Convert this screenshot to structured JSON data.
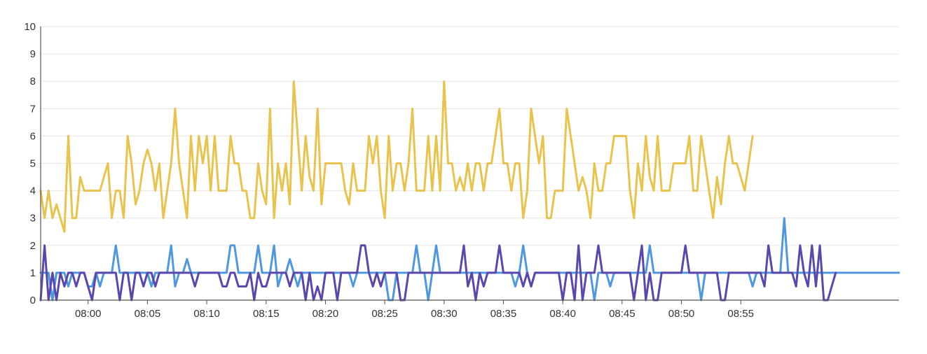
{
  "chart_data": {
    "type": "line",
    "x_start": "07:56:00",
    "x_step_seconds": 20,
    "ylim": [
      0,
      10
    ],
    "y_ticks": [
      "0",
      "1",
      "2",
      "3",
      "4",
      "5",
      "6",
      "7",
      "8",
      "9",
      "10"
    ],
    "x_ticks": [
      {
        "time": "08:00:00",
        "label": "08:00"
      },
      {
        "time": "08:05:00",
        "label": "08:05"
      },
      {
        "time": "08:10:00",
        "label": "08:10"
      },
      {
        "time": "08:15:00",
        "label": "08:15"
      },
      {
        "time": "08:20:00",
        "label": "08:20"
      },
      {
        "time": "08:25:00",
        "label": "08:25"
      },
      {
        "time": "08:30:00",
        "label": "08:30"
      },
      {
        "time": "08:35:00",
        "label": "08:35"
      },
      {
        "time": "08:40:00",
        "label": "08:40"
      },
      {
        "time": "08:45:00",
        "label": "08:45"
      },
      {
        "time": "08:50:00",
        "label": "08:50"
      },
      {
        "time": "08:55:00",
        "label": "08:55"
      }
    ],
    "grid": true,
    "series": [
      {
        "color": "#e8c44e",
        "values": [
          4,
          3,
          4,
          3,
          3.5,
          3,
          2.5,
          6,
          3,
          3,
          4.5,
          4,
          4,
          4,
          4,
          4,
          4.5,
          5,
          3,
          4,
          4,
          3,
          6,
          5,
          3.5,
          4,
          5,
          5.5,
          5,
          4,
          5,
          3,
          4,
          5,
          7,
          5,
          4,
          3,
          6,
          4,
          6,
          5,
          6,
          4,
          6,
          4,
          4,
          4,
          6,
          5,
          5,
          4,
          4,
          3,
          3,
          5,
          4,
          3.5,
          7,
          3,
          5,
          4,
          5,
          3.5,
          8,
          6,
          4,
          6,
          4.5,
          4,
          7,
          3.5,
          5,
          5,
          5,
          5,
          5,
          4,
          3.5,
          5,
          4,
          4,
          4,
          6,
          5,
          6,
          4,
          3,
          6,
          4,
          5,
          5,
          4,
          5,
          7,
          4,
          4,
          4,
          6,
          4,
          6,
          4,
          8,
          5,
          5,
          4,
          4.5,
          4,
          5,
          4,
          5,
          5,
          4,
          5,
          5,
          6,
          7,
          5,
          5,
          4,
          5,
          5,
          3,
          4,
          7,
          6,
          5,
          6,
          3,
          3,
          4,
          4,
          4,
          7,
          6,
          5,
          4,
          4.5,
          4,
          3,
          5,
          4,
          4,
          5,
          5,
          6,
          6,
          6,
          6,
          4,
          3,
          5,
          4,
          6,
          4.5,
          4,
          6,
          4,
          4,
          4,
          5,
          5,
          5,
          5,
          6,
          4,
          4,
          6,
          5,
          4,
          3,
          4.5,
          3.5,
          5,
          6,
          5,
          5,
          4.5,
          4,
          5,
          6
        ]
      },
      {
        "color": "#4e98e0",
        "values": [
          1,
          1,
          1,
          0,
          1,
          1,
          1,
          0.5,
          1,
          1,
          1,
          1,
          0.5,
          0.5,
          1,
          0.5,
          1,
          1,
          1,
          2,
          1,
          1,
          1,
          1,
          1,
          1,
          1,
          1,
          0.5,
          1,
          1,
          1,
          1,
          2,
          0.5,
          1,
          1,
          1.5,
          1,
          1,
          1,
          1,
          1,
          1,
          1,
          1,
          1,
          1,
          2,
          2,
          1,
          1,
          1,
          1,
          1,
          2,
          1,
          1,
          1,
          2,
          0.5,
          1,
          1,
          1.5,
          1,
          0.5,
          1,
          1,
          1,
          1,
          1,
          1,
          1,
          1,
          1,
          1,
          1,
          1,
          1,
          0.5,
          1,
          1,
          1,
          1,
          1,
          1,
          1,
          1,
          0,
          0,
          1,
          1,
          1,
          1,
          1,
          2,
          1,
          1,
          0,
          1,
          2,
          1,
          1,
          1,
          1,
          1,
          1,
          1,
          1,
          1,
          1,
          1,
          1,
          1,
          1,
          1,
          1,
          1,
          1,
          1,
          0.5,
          1,
          2,
          1,
          0.5,
          1,
          1,
          1,
          1,
          1,
          1,
          1,
          1,
          1,
          1,
          1,
          1,
          1,
          1,
          1,
          0,
          1,
          1,
          1,
          0.5,
          1,
          1,
          1,
          1,
          1,
          1,
          1,
          1,
          1,
          2,
          1,
          1,
          1,
          1,
          1,
          1,
          1,
          1,
          1,
          1,
          1,
          1,
          0,
          1,
          1,
          1,
          1,
          1,
          1,
          1,
          1,
          1,
          1,
          1,
          1,
          0.5,
          1,
          1,
          1,
          1,
          1,
          1,
          1,
          3,
          1,
          1,
          1,
          1,
          1,
          1,
          1,
          1,
          1,
          1,
          1,
          1,
          1,
          1,
          1,
          1,
          1,
          1,
          1,
          1,
          1,
          1,
          1,
          1,
          1,
          1,
          1,
          1,
          1
        ]
      },
      {
        "color": "#5a46ad",
        "values": [
          0,
          2,
          0,
          1,
          0,
          1,
          0.5,
          1,
          1,
          0.5,
          1,
          1,
          0.5,
          0,
          1,
          1,
          1,
          1,
          1,
          1,
          0,
          1,
          1,
          0,
          1,
          1,
          0.5,
          1,
          1,
          0.5,
          1,
          1,
          1,
          1,
          1,
          1,
          1,
          1,
          1,
          0.5,
          1,
          1,
          1,
          1,
          1,
          1,
          0.5,
          0.5,
          1,
          1,
          0.5,
          0.5,
          0.5,
          1,
          0,
          1,
          0.5,
          0.5,
          1,
          1,
          1,
          1,
          1,
          0.5,
          1,
          1,
          1,
          0,
          1,
          0,
          0.5,
          0,
          1,
          1,
          1,
          0,
          1,
          1,
          1,
          1,
          1,
          2,
          2,
          1,
          0.5,
          1,
          0.5,
          1,
          1,
          1,
          1,
          0,
          0,
          1,
          1,
          1,
          1,
          1,
          1,
          1,
          1,
          1,
          1,
          1,
          1,
          1,
          1,
          2,
          0.5,
          1,
          0,
          1,
          0.5,
          1,
          1,
          1,
          2,
          1,
          1,
          1,
          1,
          1,
          0.5,
          1,
          0.5,
          1,
          1,
          1,
          1,
          1,
          1,
          1,
          0,
          1,
          1,
          0,
          2,
          0,
          1,
          1,
          1,
          2,
          1,
          1,
          1,
          1,
          1,
          1,
          1,
          1,
          0,
          1,
          2,
          0,
          1,
          0,
          0,
          1,
          1,
          1,
          1,
          1,
          1,
          2,
          1,
          1,
          1,
          1,
          1,
          1,
          1,
          1,
          0,
          0,
          1,
          1,
          1,
          1,
          1,
          1,
          1,
          1,
          1,
          0.5,
          2,
          1,
          1,
          1,
          1,
          1,
          1,
          0.5,
          2,
          1,
          0.5,
          2,
          0.5,
          2,
          0,
          0,
          0.5,
          1
        ]
      }
    ]
  }
}
